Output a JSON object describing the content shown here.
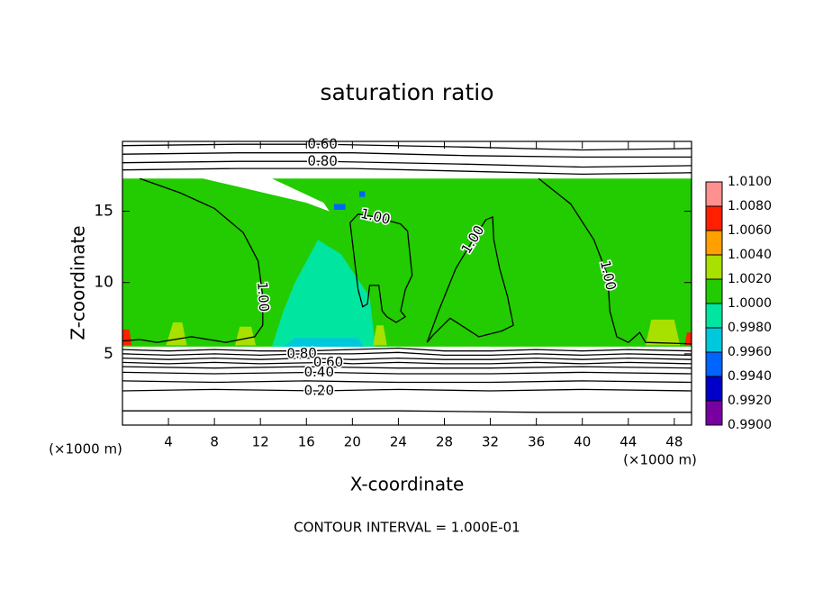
{
  "chart_data": {
    "type": "contour",
    "title": "saturation ratio",
    "xlabel": "X-coordinate",
    "ylabel": "Z-coordinate",
    "x_unit": "(×1000 m)",
    "y_unit": "(×1000 m)",
    "footer": "CONTOUR INTERVAL = 1.000E-01",
    "xlim": [
      0,
      49.5
    ],
    "ylim": [
      0,
      19.9
    ],
    "xticks": [
      4,
      8,
      12,
      16,
      20,
      24,
      28,
      32,
      36,
      40,
      44,
      48
    ],
    "yticks": [
      5,
      10,
      15
    ],
    "colorbar": {
      "levels": [
        {
          "value": 0.99,
          "label": "0.9900"
        },
        {
          "value": 0.992,
          "label": "0.9920"
        },
        {
          "value": 0.994,
          "label": "0.9940"
        },
        {
          "value": 0.996,
          "label": "0.9960"
        },
        {
          "value": 0.998,
          "label": "0.9980"
        },
        {
          "value": 1.0,
          "label": "1.0000"
        },
        {
          "value": 1.002,
          "label": "1.0020"
        },
        {
          "value": 1.004,
          "label": "1.0040"
        },
        {
          "value": 1.006,
          "label": "1.0060"
        },
        {
          "value": 1.008,
          "label": "1.0080"
        },
        {
          "value": 1.01,
          "label": "1.0100"
        }
      ],
      "colors": [
        "#7800a0",
        "#0000c8",
        "#0064ff",
        "#00c8dc",
        "#00e6a0",
        "#22cc00",
        "#a8e000",
        "#ffa000",
        "#ff2000",
        "#ff9090"
      ]
    },
    "fill": [
      {
        "value": 1.001,
        "x": [
          0,
          49.5,
          49.5,
          13,
          17.5,
          18,
          16,
          7,
          0
        ],
        "z": [
          5.5,
          5.5,
          17.3,
          17.3,
          15.6,
          15.0,
          15.6,
          17.3,
          17.3
        ]
      },
      {
        "value": 0.999,
        "x": [
          13,
          22,
          21.5,
          19,
          17,
          15,
          14
        ],
        "z": [
          5.5,
          5.5,
          9,
          12,
          13,
          10,
          8
        ]
      },
      {
        "value": 0.997,
        "x": [
          14,
          21,
          20.5,
          15
        ],
        "z": [
          5.5,
          5.5,
          6.1,
          6.1
        ]
      },
      {
        "value": 1.003,
        "x": [
          3.8,
          5.6,
          5.2,
          4.4
        ],
        "z": [
          5.6,
          5.6,
          7.2,
          7.2
        ]
      },
      {
        "value": 1.003,
        "x": [
          9.8,
          11.6,
          11.2,
          10.2
        ],
        "z": [
          5.6,
          5.6,
          6.9,
          6.9
        ]
      },
      {
        "value": 1.003,
        "x": [
          45.5,
          48.5,
          48,
          46
        ],
        "z": [
          5.6,
          5.6,
          7.4,
          7.4
        ]
      },
      {
        "value": 1.003,
        "x": [
          21.8,
          23,
          22.7,
          22.1
        ],
        "z": [
          5.6,
          5.6,
          7,
          7
        ]
      },
      {
        "value": 0.995,
        "x": [
          18.4,
          19.4,
          19.4,
          18.4
        ],
        "z": [
          15.1,
          15.1,
          15.5,
          15.5
        ]
      },
      {
        "value": 0.995,
        "x": [
          20.6,
          21.1,
          21.1,
          20.6
        ],
        "z": [
          16.0,
          16.0,
          16.4,
          16.4
        ]
      },
      {
        "value": 1.007,
        "x": [
          0,
          0.8,
          0.6,
          0
        ],
        "z": [
          5.6,
          5.6,
          6.7,
          6.7
        ]
      },
      {
        "value": 1.007,
        "x": [
          48.9,
          49.5,
          49.5,
          49.1
        ],
        "z": [
          5.6,
          5.6,
          6.5,
          6.5
        ]
      }
    ],
    "contours": [
      {
        "level": 0.6,
        "label": "0.60",
        "x": [
          0,
          10,
          17.4,
          30,
          40,
          49.5
        ],
        "z": [
          19.6,
          19.7,
          19.7,
          19.5,
          19.3,
          19.4
        ]
      },
      {
        "level": 0.7,
        "x": [
          0,
          10,
          20,
          30,
          40,
          49.5
        ],
        "z": [
          19.0,
          19.1,
          19.1,
          18.9,
          18.8,
          18.8
        ]
      },
      {
        "level": 0.8,
        "label": "0.80",
        "x": [
          0,
          10,
          17.4,
          30,
          40,
          49.5
        ],
        "z": [
          18.4,
          18.5,
          18.5,
          18.3,
          18.1,
          18.2
        ]
      },
      {
        "level": 0.9,
        "x": [
          0,
          10,
          20,
          30,
          40,
          49.5
        ],
        "z": [
          17.9,
          18.0,
          18.0,
          17.8,
          17.6,
          17.7
        ]
      },
      {
        "level": 0.9,
        "x": [
          0,
          4,
          8,
          12,
          16,
          20,
          24,
          28,
          32,
          36,
          40,
          44,
          49.5
        ],
        "z": [
          5.3,
          5.2,
          5.3,
          5.2,
          5.2,
          5.3,
          5.4,
          5.2,
          5.2,
          5.3,
          5.2,
          5.3,
          5.2
        ]
      },
      {
        "level": 0.8,
        "label": "0.80",
        "x": [
          0,
          4,
          8,
          12,
          15.6,
          20,
          24,
          28,
          32,
          36,
          40,
          44,
          49.5
        ],
        "z": [
          5.0,
          4.9,
          5.0,
          4.9,
          5.0,
          5.0,
          5.1,
          4.9,
          4.9,
          5.0,
          4.9,
          5.0,
          4.9
        ]
      },
      {
        "level": 0.7,
        "x": [
          0,
          4,
          8,
          12,
          16,
          20,
          24,
          28,
          32,
          36,
          40,
          44,
          49.5
        ],
        "z": [
          4.7,
          4.6,
          4.7,
          4.6,
          4.7,
          4.6,
          4.7,
          4.6,
          4.6,
          4.7,
          4.6,
          4.7,
          4.6
        ]
      },
      {
        "level": 0.6,
        "label": "0.60",
        "x": [
          0,
          4,
          8,
          12,
          17.9,
          20,
          24,
          28,
          32,
          36,
          40,
          44,
          49.5
        ],
        "z": [
          4.4,
          4.3,
          4.4,
          4.3,
          4.4,
          4.3,
          4.4,
          4.3,
          4.3,
          4.4,
          4.3,
          4.4,
          4.3
        ]
      },
      {
        "level": 0.5,
        "x": [
          0,
          8,
          16,
          24,
          32,
          40,
          49.5
        ],
        "z": [
          4.1,
          4.0,
          4.1,
          4.0,
          4.0,
          4.1,
          4.0
        ]
      },
      {
        "level": 0.4,
        "label": "0.40",
        "x": [
          0,
          8,
          17.1,
          24,
          32,
          40,
          49.5
        ],
        "z": [
          3.7,
          3.6,
          3.7,
          3.6,
          3.6,
          3.7,
          3.6
        ]
      },
      {
        "level": 0.3,
        "x": [
          0,
          8,
          16,
          24,
          32,
          40,
          49.5
        ],
        "z": [
          3.1,
          3.0,
          3.1,
          3.0,
          3.0,
          3.1,
          3.0
        ]
      },
      {
        "level": 0.2,
        "label": "0.20",
        "x": [
          0,
          8,
          17.1,
          24,
          32,
          40,
          49.5
        ],
        "z": [
          2.4,
          2.5,
          2.4,
          2.5,
          2.4,
          2.5,
          2.4
        ]
      },
      {
        "level": 0.1,
        "x": [
          0,
          12,
          24,
          36,
          49.5
        ],
        "z": [
          1.0,
          1.0,
          1.0,
          0.9,
          0.9
        ]
      },
      {
        "level": 1.0,
        "label": "1.00",
        "x": [
          1.5,
          5,
          8,
          10.5,
          11.8,
          12.2,
          12.2,
          11.5,
          9,
          6,
          3,
          1.5,
          0
        ],
        "z": [
          17.3,
          16.3,
          15.2,
          13.5,
          11.5,
          9,
          7,
          6.2,
          5.8,
          6.2,
          5.8,
          6.0,
          5.9
        ]
      },
      {
        "level": 1.0,
        "label": "1.00",
        "x": [
          19.8,
          20.5,
          22,
          24.2,
          24.8,
          25.2,
          24.6,
          24.2,
          24.6,
          23.8,
          23,
          22.6,
          22.3,
          21.5,
          21.3,
          20.9,
          20.5,
          19.8
        ],
        "z": [
          14.2,
          14.8,
          14.6,
          14.1,
          13.6,
          10.5,
          9.5,
          8,
          7.6,
          7.2,
          7.6,
          8,
          9.8,
          9.8,
          8.5,
          8.3,
          9.5,
          14.2
        ]
      },
      {
        "level": 1.0,
        "label": "1.00",
        "x": [
          26.5,
          27.5,
          29,
          30.5,
          31.6,
          32.2,
          32.3,
          32.8,
          33.5,
          34,
          33,
          31,
          28.5,
          27,
          26.5
        ],
        "z": [
          5.8,
          8,
          11,
          13,
          14.4,
          14.6,
          13,
          11,
          9,
          7,
          6.6,
          6.2,
          7.5,
          6.3,
          5.8
        ]
      },
      {
        "level": 1.0,
        "label": "1.00",
        "x": [
          36.2,
          39,
          41,
          42.2,
          42.4,
          43,
          44,
          45,
          45.5,
          49.5
        ],
        "z": [
          17.3,
          15.5,
          13,
          10.5,
          8,
          6.2,
          5.8,
          6.5,
          5.8,
          5.7
        ]
      }
    ]
  }
}
